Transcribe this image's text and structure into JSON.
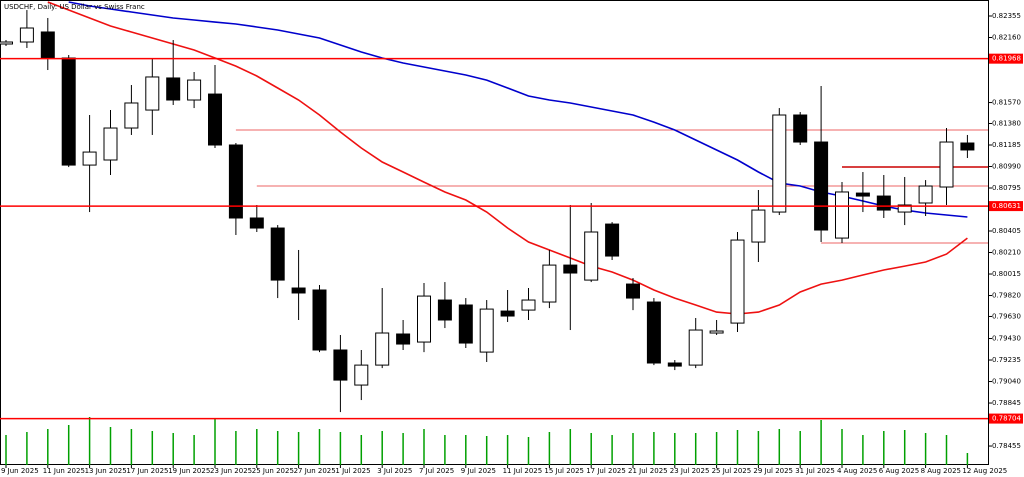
{
  "chart_data": {
    "type": "candlestick",
    "title": "USDCHF, Daily: US Dollar vs Swiss Franc",
    "categories": [
      "9 Jun 2025",
      null,
      "11 Jun 2025",
      null,
      "13 Jun 2025",
      null,
      "17 Jun 2025",
      null,
      "19 Jun 2025",
      null,
      "23 Jun 2025",
      null,
      "25 Jun 2025",
      null,
      "27 Jun 2025",
      null,
      "1 Jul 2025",
      null,
      "3 Jul 2025",
      null,
      "7 Jul 2025",
      null,
      "9 Jul 2025",
      null,
      "11 Jul 2025",
      null,
      "15 Jul 2025",
      null,
      "17 Jul 2025",
      null,
      "21 Jul 2025",
      null,
      "23 Jul 2025",
      null,
      "25 Jul 2025",
      null,
      "29 Jul 2025",
      null,
      "31 Jul 2025",
      null,
      "4 Aug 2025",
      null,
      "6 Aug 2025",
      null,
      "8 Aug 2025",
      null,
      "12 Aug 2025"
    ],
    "open": [
      0.82101,
      0.82119,
      0.8221,
      0.81974,
      0.81003,
      0.81049,
      0.81339,
      0.81502,
      0.81793,
      0.81593,
      0.81647,
      0.81185,
      0.80523,
      0.80432,
      0.79888,
      0.7987,
      0.79326,
      0.79008,
      0.79189,
      0.79471,
      0.79398,
      0.79779,
      0.79734,
      0.79307,
      0.79679,
      0.79688,
      0.79761,
      0.80096,
      0.7996,
      0.80468,
      0.79924,
      0.79761,
      0.79208,
      0.79189,
      0.7948,
      0.7957,
      0.80305,
      0.80577,
      0.81457,
      0.81212,
      0.80341,
      0.80749,
      0.80722,
      0.80577,
      0.80659,
      0.80804,
      0.81203
    ],
    "high": [
      0.82137,
      0.82409,
      0.82337,
      0.82001,
      0.81457,
      0.81502,
      0.81729,
      0.81974,
      0.82137,
      0.81847,
      0.8191,
      0.81203,
      0.80641,
      0.80459,
      0.80233,
      0.79915,
      0.79462,
      0.79326,
      0.79888,
      0.79598,
      0.79933,
      0.79942,
      0.79797,
      0.79779,
      0.7987,
      0.79888,
      0.80233,
      0.80641,
      0.80659,
      0.80486,
      0.79979,
      0.79797,
      0.79235,
      0.79616,
      0.79598,
      0.80396,
      0.80777,
      0.8152,
      0.81484,
      0.8172,
      0.80849,
      0.8094,
      0.80913,
      0.80895,
      0.80867,
      0.81339,
      0.81276
    ],
    "low": [
      0.82083,
      0.82065,
      0.81865,
      0.80985,
      0.80577,
      0.80913,
      0.81276,
      0.81276,
      0.81548,
      0.8152,
      0.81158,
      0.80369,
      0.80396,
      0.79797,
      0.79598,
      0.79307,
      0.78763,
      0.78872,
      0.79162,
      0.79326,
      0.79307,
      0.79525,
      0.79344,
      0.79217,
      0.7958,
      0.79598,
      0.79706,
      0.79507,
      0.79942,
      0.80142,
      0.79688,
      0.79189,
      0.79144,
      0.79162,
      0.79462,
      0.79489,
      0.80124,
      0.8055,
      0.81185,
      0.80305,
      0.80296,
      0.80577,
      0.80523,
      0.80459,
      0.80541,
      0.80641,
      0.81067
    ],
    "close": [
      0.82119,
      0.82246,
      0.81974,
      0.81003,
      0.81121,
      0.81339,
      0.81566,
      0.81802,
      0.81593,
      0.81774,
      0.81185,
      0.80523,
      0.80432,
      0.7996,
      0.79843,
      0.79326,
      0.79053,
      0.79189,
      0.7948,
      0.7938,
      0.79815,
      0.79598,
      0.79389,
      0.79697,
      0.79634,
      0.79779,
      0.80096,
      0.80024,
      0.80396,
      0.80178,
      0.79797,
      0.79208,
      0.7918,
      0.79507,
      0.79498,
      0.80323,
      0.80595,
      0.81457,
      0.81212,
      0.80414,
      0.80759,
      0.80722,
      0.80595,
      0.80641,
      0.80813,
      0.81212,
      0.8114
    ],
    "bull_color": "#ffffff",
    "bear_color": "#000000",
    "series": [
      {
        "color": "#0000cc",
        "values": [
          null,
          null,
          null,
          0.82482,
          0.82446,
          0.82418,
          0.82391,
          0.82364,
          0.82337,
          0.82319,
          0.823,
          0.82282,
          0.82255,
          0.82228,
          0.82192,
          0.82155,
          0.82092,
          0.82028,
          0.81974,
          0.81929,
          0.81892,
          0.81856,
          0.8182,
          0.81774,
          0.81702,
          0.81629,
          0.81593,
          0.81566,
          0.8153,
          0.81493,
          0.81457,
          0.81393,
          0.81321,
          0.8123,
          0.8114,
          0.81049,
          0.8094,
          0.8084,
          0.80813,
          0.80759,
          0.80722,
          0.80677,
          0.80632,
          0.80595,
          0.80568,
          0.8055,
          0.80532
        ]
      },
      {
        "color": "#ee1111",
        "values": [
          null,
          null,
          0.82482,
          0.82409,
          0.82337,
          0.82264,
          0.8221,
          0.82155,
          0.82101,
          0.82047,
          0.81974,
          0.81901,
          0.81811,
          0.81702,
          0.81593,
          0.81457,
          0.81303,
          0.81158,
          0.81031,
          0.8094,
          0.80849,
          0.80759,
          0.80686,
          0.80577,
          0.80432,
          0.80305,
          0.80233,
          0.8016,
          0.80087,
          0.80033,
          0.7996,
          0.7987,
          0.79797,
          0.79734,
          0.7967,
          0.79652,
          0.7967,
          0.79734,
          0.79852,
          0.79924,
          0.7996,
          0.80006,
          0.80051,
          0.80087,
          0.80124,
          0.80196,
          0.80341
        ]
      }
    ],
    "volume": [
      30,
      33,
      36,
      40,
      48,
      38,
      36,
      34,
      32,
      30,
      46,
      34,
      36,
      34,
      33,
      36,
      33,
      30,
      34,
      32,
      36,
      30,
      30,
      29,
      30,
      28,
      33,
      36,
      32,
      30,
      32,
      33,
      32,
      32,
      33,
      35,
      34,
      36,
      34,
      45,
      36,
      30,
      34,
      35,
      32,
      30,
      12
    ],
    "volume_color": "#00a000",
    "levels": [
      0.81968,
      0.80631,
      0.78704
    ],
    "level_color": "#ff0000",
    "trendlines": [
      {
        "value": 0.81321,
        "from": 11
      },
      {
        "value": 0.80813,
        "from": 12
      },
      {
        "value": 0.80985,
        "from": 40
      },
      {
        "value": 0.80296,
        "from": 39
      }
    ],
    "ylim": [
      0.78283,
      0.825
    ],
    "yticks": [
      0.82355,
      {
        "value": 0.8216,
        "label": "0.82160"
      },
      {
        "value": 0.8157,
        "label": "0.81570"
      },
      {
        "value": 0.8138,
        "label": "0.81380"
      },
      0.81185,
      {
        "value": 0.8099,
        "label": "0.80990"
      },
      0.80795,
      0.80405,
      {
        "value": 0.8021,
        "label": "0.80210"
      },
      0.80015,
      {
        "value": 0.7982,
        "label": "0.79820"
      },
      {
        "value": 0.7963,
        "label": "0.79630"
      },
      {
        "value": 0.7943,
        "label": "0.79430"
      },
      0.79235,
      {
        "value": 0.7904,
        "label": "0.79040"
      },
      0.78845,
      0.78455
    ]
  }
}
